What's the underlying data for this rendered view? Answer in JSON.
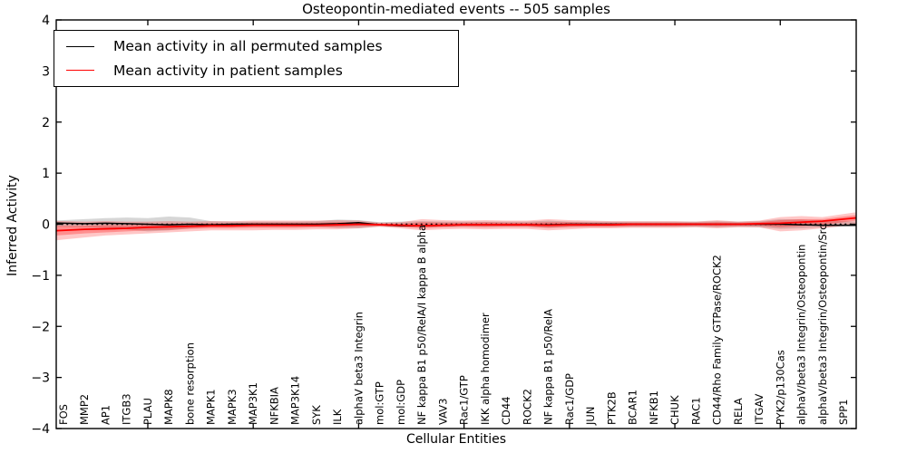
{
  "title": "Osteopontin-mediated events -- 505 samples",
  "axes": {
    "x_label": "Cellular Entities",
    "y_label": "Inferred Activity",
    "y_tick_labels": [
      "4",
      "3",
      "2",
      "1",
      "0",
      "−1",
      "−2",
      "−3",
      "−4"
    ],
    "y_tick_values": [
      4,
      3,
      2,
      1,
      0,
      -1,
      -2,
      -3,
      -4
    ]
  },
  "legend": {
    "items": [
      {
        "label": "Mean activity in all permuted samples",
        "color": "#000000"
      },
      {
        "label": "Mean activity in patient samples",
        "color": "#ff0000"
      }
    ]
  },
  "colors": {
    "permuted_line": "#000000",
    "patient_line": "#ff0000",
    "permuted_band": "#999999",
    "patient_band": "#ff0000",
    "frame": "#000000"
  },
  "chart_data": {
    "type": "line",
    "title": "Osteopontin-mediated events -- 505 samples",
    "xlabel": "Cellular Entities",
    "ylabel": "Inferred Activity",
    "ylim": [
      -4,
      4
    ],
    "grid": false,
    "legend_position": "upper left",
    "zero_reference_line": 0,
    "x_major_tick_indices": [
      4,
      9,
      14,
      19,
      24,
      29,
      34
    ],
    "categories": [
      "FOS",
      "MMP2",
      "AP1",
      "ITGB3",
      "PLAU",
      "MAPK8",
      "bone resorption",
      "MAPK1",
      "MAPK3",
      "MAP3K1",
      "NFKBIA",
      "MAP3K14",
      "SYK",
      "ILK",
      "alphaV beta3 Integrin",
      "mol:GTP",
      "mol:GDP",
      "NF kappa B1 p50/RelA/I kappa B alpha",
      "VAV3",
      "Rac1/GTP",
      "IKK alpha homodimer",
      "CD44",
      "ROCK2",
      "NF kappa B1 p50/RelA",
      "Rac1/GDP",
      "JUN",
      "PTK2B",
      "BCAR1",
      "NFKB1",
      "CHUK",
      "RAC1",
      "CD44/Rho Family GTPase/ROCK2",
      "RELA",
      "ITGAV",
      "PYK2/p130Cas",
      "alphaV/beta3 Integrin/Osteopontin",
      "alphaV/beta3 Integrin/Osteopontin/Src",
      "SPP1"
    ],
    "series": [
      {
        "name": "Mean activity in all permuted samples",
        "color": "#000000",
        "values": [
          0.02,
          0.01,
          0.02,
          0.01,
          0,
          -0.01,
          0,
          -0.01,
          0,
          0,
          0,
          0,
          0,
          0.01,
          0.03,
          -0.01,
          -0.03,
          -0.03,
          -0.02,
          -0.01,
          -0.01,
          -0.01,
          -0.01,
          -0.01,
          0,
          0,
          0,
          0,
          0,
          0,
          0,
          0,
          0,
          0,
          0,
          -0.01,
          -0.02,
          -0.02
        ]
      },
      {
        "name": "Mean activity in patient samples",
        "color": "#ff0000",
        "values": [
          -0.12,
          -0.1,
          -0.09,
          -0.08,
          -0.06,
          -0.05,
          -0.04,
          -0.03,
          -0.03,
          -0.02,
          -0.02,
          -0.02,
          -0.02,
          -0.01,
          0,
          -0.01,
          -0.02,
          -0.03,
          -0.02,
          -0.01,
          -0.01,
          -0.01,
          -0.01,
          -0.02,
          -0.01,
          -0.01,
          -0.01,
          0,
          0,
          0,
          0,
          0,
          0,
          0.01,
          0.02,
          0.04,
          0.06,
          0.1
        ]
      }
    ],
    "bands": [
      {
        "name": "permuted-range",
        "color": "#999999",
        "opacity": 0.4,
        "upper": [
          0.08,
          0.1,
          0.12,
          0.13,
          0.12,
          0.15,
          0.13,
          0.06,
          0.05,
          0.05,
          0.05,
          0.05,
          0.06,
          0.09,
          0.08,
          0.04,
          0.05,
          0.06,
          0.05,
          0.05,
          0.05,
          0.05,
          0.05,
          0.07,
          0.05,
          0.05,
          0.05,
          0.05,
          0.05,
          0.05,
          0.05,
          0.06,
          0.05,
          0.06,
          0.1,
          0.09,
          0.07,
          0.06
        ],
        "lower": [
          -0.05,
          -0.06,
          -0.07,
          -0.1,
          -0.14,
          -0.12,
          -0.08,
          -0.05,
          -0.05,
          -0.05,
          -0.05,
          -0.05,
          -0.05,
          -0.07,
          -0.08,
          -0.04,
          -0.05,
          -0.06,
          -0.05,
          -0.05,
          -0.05,
          -0.05,
          -0.05,
          -0.07,
          -0.05,
          -0.05,
          -0.05,
          -0.05,
          -0.05,
          -0.05,
          -0.05,
          -0.06,
          -0.05,
          -0.06,
          -0.09,
          -0.08,
          -0.06,
          -0.05
        ]
      },
      {
        "name": "patient-range-outer",
        "color": "#ff0000",
        "opacity": 0.22,
        "upper": [
          0.06,
          0.05,
          0.06,
          0.05,
          0.05,
          0.06,
          0.05,
          0.06,
          0.06,
          0.07,
          0.07,
          0.07,
          0.07,
          0.08,
          0.07,
          0.03,
          0.04,
          0.1,
          0.08,
          0.07,
          0.08,
          0.07,
          0.07,
          0.1,
          0.08,
          0.07,
          0.06,
          0.06,
          0.06,
          0.06,
          0.05,
          0.08,
          0.05,
          0.07,
          0.14,
          0.16,
          0.14,
          0.2
        ],
        "lower": [
          -0.3,
          -0.26,
          -0.22,
          -0.2,
          -0.18,
          -0.16,
          -0.14,
          -0.12,
          -0.12,
          -0.12,
          -0.11,
          -0.11,
          -0.1,
          -0.1,
          -0.08,
          -0.05,
          -0.08,
          -0.12,
          -0.1,
          -0.09,
          -0.1,
          -0.09,
          -0.09,
          -0.12,
          -0.1,
          -0.08,
          -0.08,
          -0.07,
          -0.07,
          -0.07,
          -0.06,
          -0.08,
          -0.06,
          -0.06,
          -0.14,
          -0.12,
          -0.08,
          -0.03
        ]
      },
      {
        "name": "patient-range-inner",
        "color": "#ff0000",
        "opacity": 0.28,
        "upper": [
          -0.03,
          -0.03,
          -0.02,
          -0.02,
          -0.01,
          0.01,
          0.01,
          0.02,
          0.02,
          0.03,
          0.03,
          0.03,
          0.03,
          0.04,
          0.04,
          0.01,
          0.01,
          0.04,
          0.03,
          0.03,
          0.04,
          0.03,
          0.03,
          0.04,
          0.04,
          0.03,
          0.03,
          0.03,
          0.03,
          0.03,
          0.03,
          0.04,
          0.03,
          0.04,
          0.08,
          0.1,
          0.1,
          0.15
        ],
        "lower": [
          -0.21,
          -0.18,
          -0.16,
          -0.14,
          -0.12,
          -0.11,
          -0.09,
          -0.08,
          -0.08,
          -0.07,
          -0.07,
          -0.07,
          -0.06,
          -0.06,
          -0.04,
          -0.03,
          -0.05,
          -0.08,
          -0.06,
          -0.05,
          -0.06,
          -0.05,
          -0.05,
          -0.07,
          -0.06,
          -0.05,
          -0.05,
          -0.04,
          -0.04,
          -0.04,
          -0.03,
          -0.04,
          -0.03,
          -0.03,
          -0.06,
          -0.04,
          -0.01,
          0.04
        ]
      }
    ]
  }
}
